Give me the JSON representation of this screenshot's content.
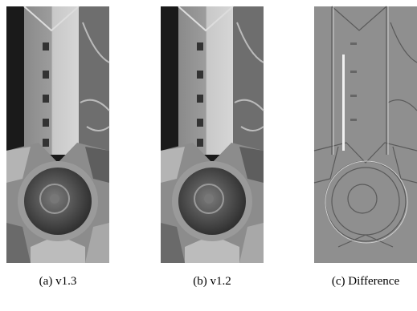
{
  "figure": {
    "panels": [
      {
        "caption": "(a) v1.3"
      },
      {
        "caption": "(b) v1.2"
      },
      {
        "caption": "(c) Difference"
      }
    ]
  }
}
